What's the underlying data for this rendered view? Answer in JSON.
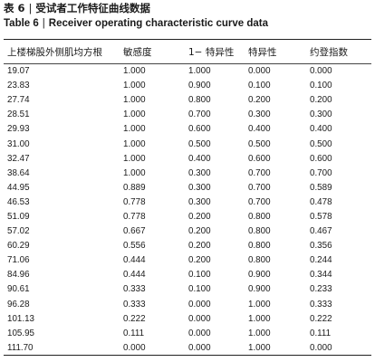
{
  "caption": {
    "zh_label": "表 6",
    "zh_title": "受试者工作特征曲线数据",
    "en_label": "Table 6",
    "en_title": "Receiver operating characteristic curve data",
    "separator": "|"
  },
  "table": {
    "headers": [
      "上楼梯股外侧肌均方根",
      "敏感度",
      "1− 特异性",
      "特异性",
      "约登指数"
    ],
    "rows": [
      [
        "19.07",
        "1.000",
        "1.000",
        "0.000",
        "0.000"
      ],
      [
        "23.83",
        "1.000",
        "0.900",
        "0.100",
        "0.100"
      ],
      [
        "27.74",
        "1.000",
        "0.800",
        "0.200",
        "0.200"
      ],
      [
        "28.51",
        "1.000",
        "0.700",
        "0.300",
        "0.300"
      ],
      [
        "29.93",
        "1.000",
        "0.600",
        "0.400",
        "0.400"
      ],
      [
        "31.00",
        "1.000",
        "0.500",
        "0.500",
        "0.500"
      ],
      [
        "32.47",
        "1.000",
        "0.400",
        "0.600",
        "0.600"
      ],
      [
        "38.64",
        "1.000",
        "0.300",
        "0.700",
        "0.700"
      ],
      [
        "44.95",
        "0.889",
        "0.300",
        "0.700",
        "0.589"
      ],
      [
        "46.53",
        "0.778",
        "0.300",
        "0.700",
        "0.478"
      ],
      [
        "51.09",
        "0.778",
        "0.200",
        "0.800",
        "0.578"
      ],
      [
        "57.02",
        "0.667",
        "0.200",
        "0.800",
        "0.467"
      ],
      [
        "60.29",
        "0.556",
        "0.200",
        "0.800",
        "0.356"
      ],
      [
        "71.06",
        "0.444",
        "0.200",
        "0.800",
        "0.244"
      ],
      [
        "84.96",
        "0.444",
        "0.100",
        "0.900",
        "0.344"
      ],
      [
        "90.61",
        "0.333",
        "0.100",
        "0.900",
        "0.233"
      ],
      [
        "96.28",
        "0.333",
        "0.000",
        "1.000",
        "0.333"
      ],
      [
        "101.13",
        "0.222",
        "0.000",
        "1.000",
        "0.222"
      ],
      [
        "105.95",
        "0.111",
        "0.000",
        "1.000",
        "0.111"
      ],
      [
        "111.70",
        "0.000",
        "0.000",
        "1.000",
        "0.000"
      ]
    ]
  }
}
